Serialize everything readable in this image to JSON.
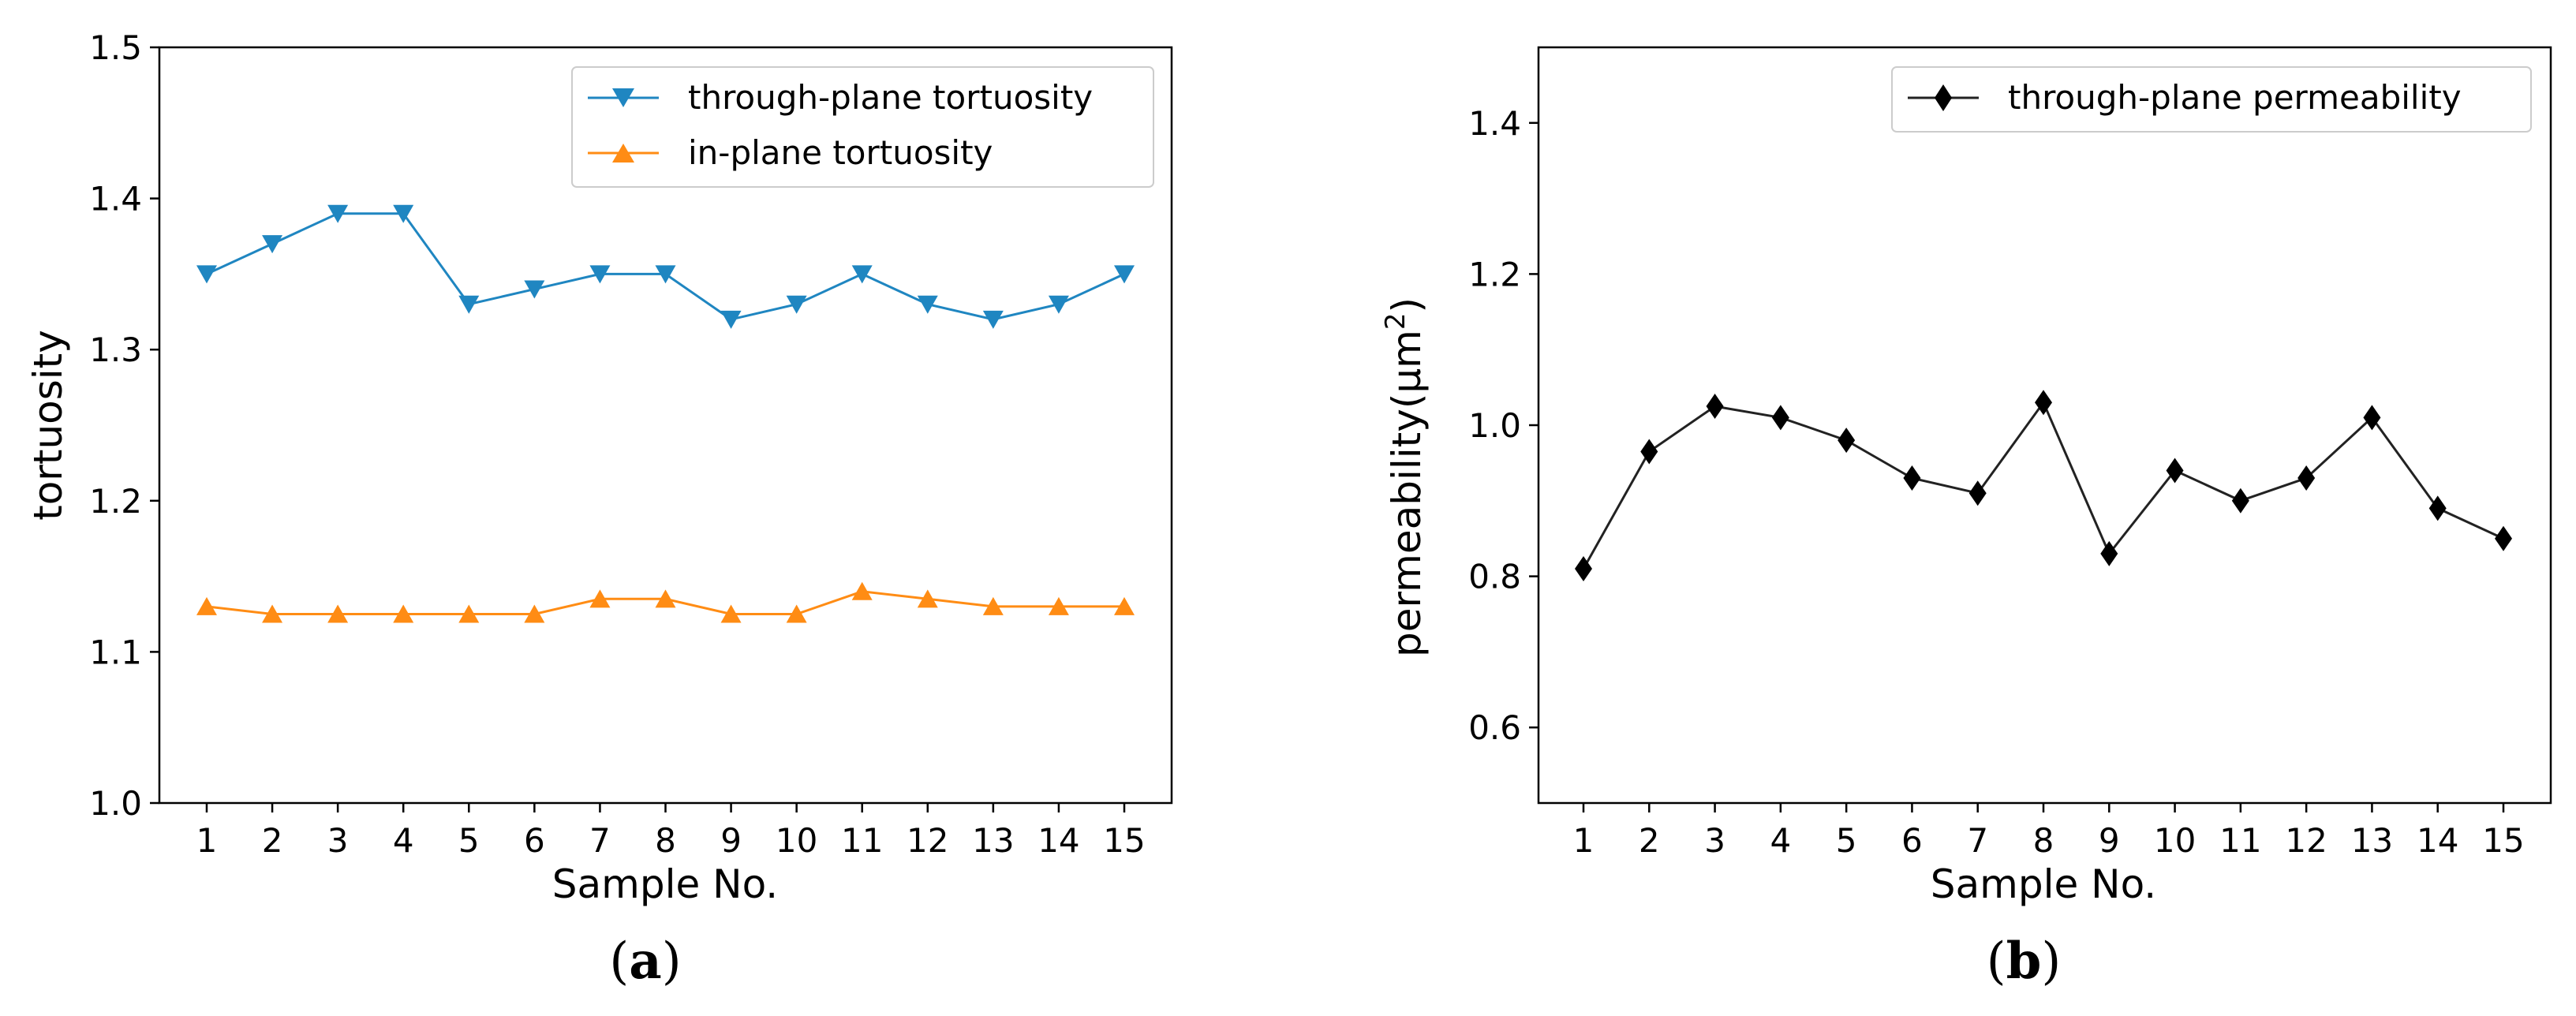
{
  "chart_data": [
    {
      "type": "line",
      "caption_letter": "a",
      "title": "",
      "xlabel": "Sample No.",
      "ylabel": "tortuosity",
      "x": [
        1,
        2,
        3,
        4,
        5,
        6,
        7,
        8,
        9,
        10,
        11,
        12,
        13,
        14,
        15
      ],
      "xticks": [
        "1",
        "2",
        "3",
        "4",
        "5",
        "6",
        "7",
        "8",
        "9",
        "10",
        "11",
        "12",
        "13",
        "14",
        "15"
      ],
      "ylim": [
        1.0,
        1.5
      ],
      "yticks": [
        1.0,
        1.1,
        1.2,
        1.3,
        1.4,
        1.5
      ],
      "ytick_labels": [
        "1.0",
        "1.1",
        "1.2",
        "1.3",
        "1.4",
        "1.5"
      ],
      "grid": false,
      "legend_position": "top-right",
      "series": [
        {
          "name": "through-plane tortuosity",
          "color": "#1f86c1",
          "marker": "triangle-down",
          "values": [
            1.35,
            1.37,
            1.39,
            1.39,
            1.33,
            1.34,
            1.35,
            1.35,
            1.32,
            1.33,
            1.35,
            1.33,
            1.32,
            1.33,
            1.35
          ]
        },
        {
          "name": "in-plane tortuosity",
          "color": "#ff8c14",
          "marker": "triangle-up",
          "values": [
            1.13,
            1.125,
            1.125,
            1.125,
            1.125,
            1.125,
            1.135,
            1.135,
            1.125,
            1.125,
            1.14,
            1.135,
            1.13,
            1.13,
            1.13
          ]
        }
      ]
    },
    {
      "type": "line",
      "caption_letter": "b",
      "title": "",
      "xlabel": "Sample No.",
      "ylabel": "permeability(μm",
      "ylabel_sup": "2",
      "ylabel_close": ")",
      "x": [
        1,
        2,
        3,
        4,
        5,
        6,
        7,
        8,
        9,
        10,
        11,
        12,
        13,
        14,
        15
      ],
      "xticks": [
        "1",
        "2",
        "3",
        "4",
        "5",
        "6",
        "7",
        "8",
        "9",
        "10",
        "11",
        "12",
        "13",
        "14",
        "15"
      ],
      "ylim": [
        0.5,
        1.5
      ],
      "yticks": [
        0.6,
        0.8,
        1.0,
        1.2,
        1.4
      ],
      "ytick_labels": [
        "0.6",
        "0.8",
        "1.0",
        "1.2",
        "1.4"
      ],
      "grid": false,
      "legend_position": "top-right",
      "series": [
        {
          "name": "through-plane permeability",
          "color": "#222222",
          "marker": "diamond",
          "values": [
            0.81,
            0.965,
            1.025,
            1.01,
            0.98,
            0.93,
            0.91,
            1.03,
            0.83,
            0.94,
            0.9,
            0.93,
            1.01,
            0.89,
            0.85
          ]
        }
      ]
    }
  ]
}
